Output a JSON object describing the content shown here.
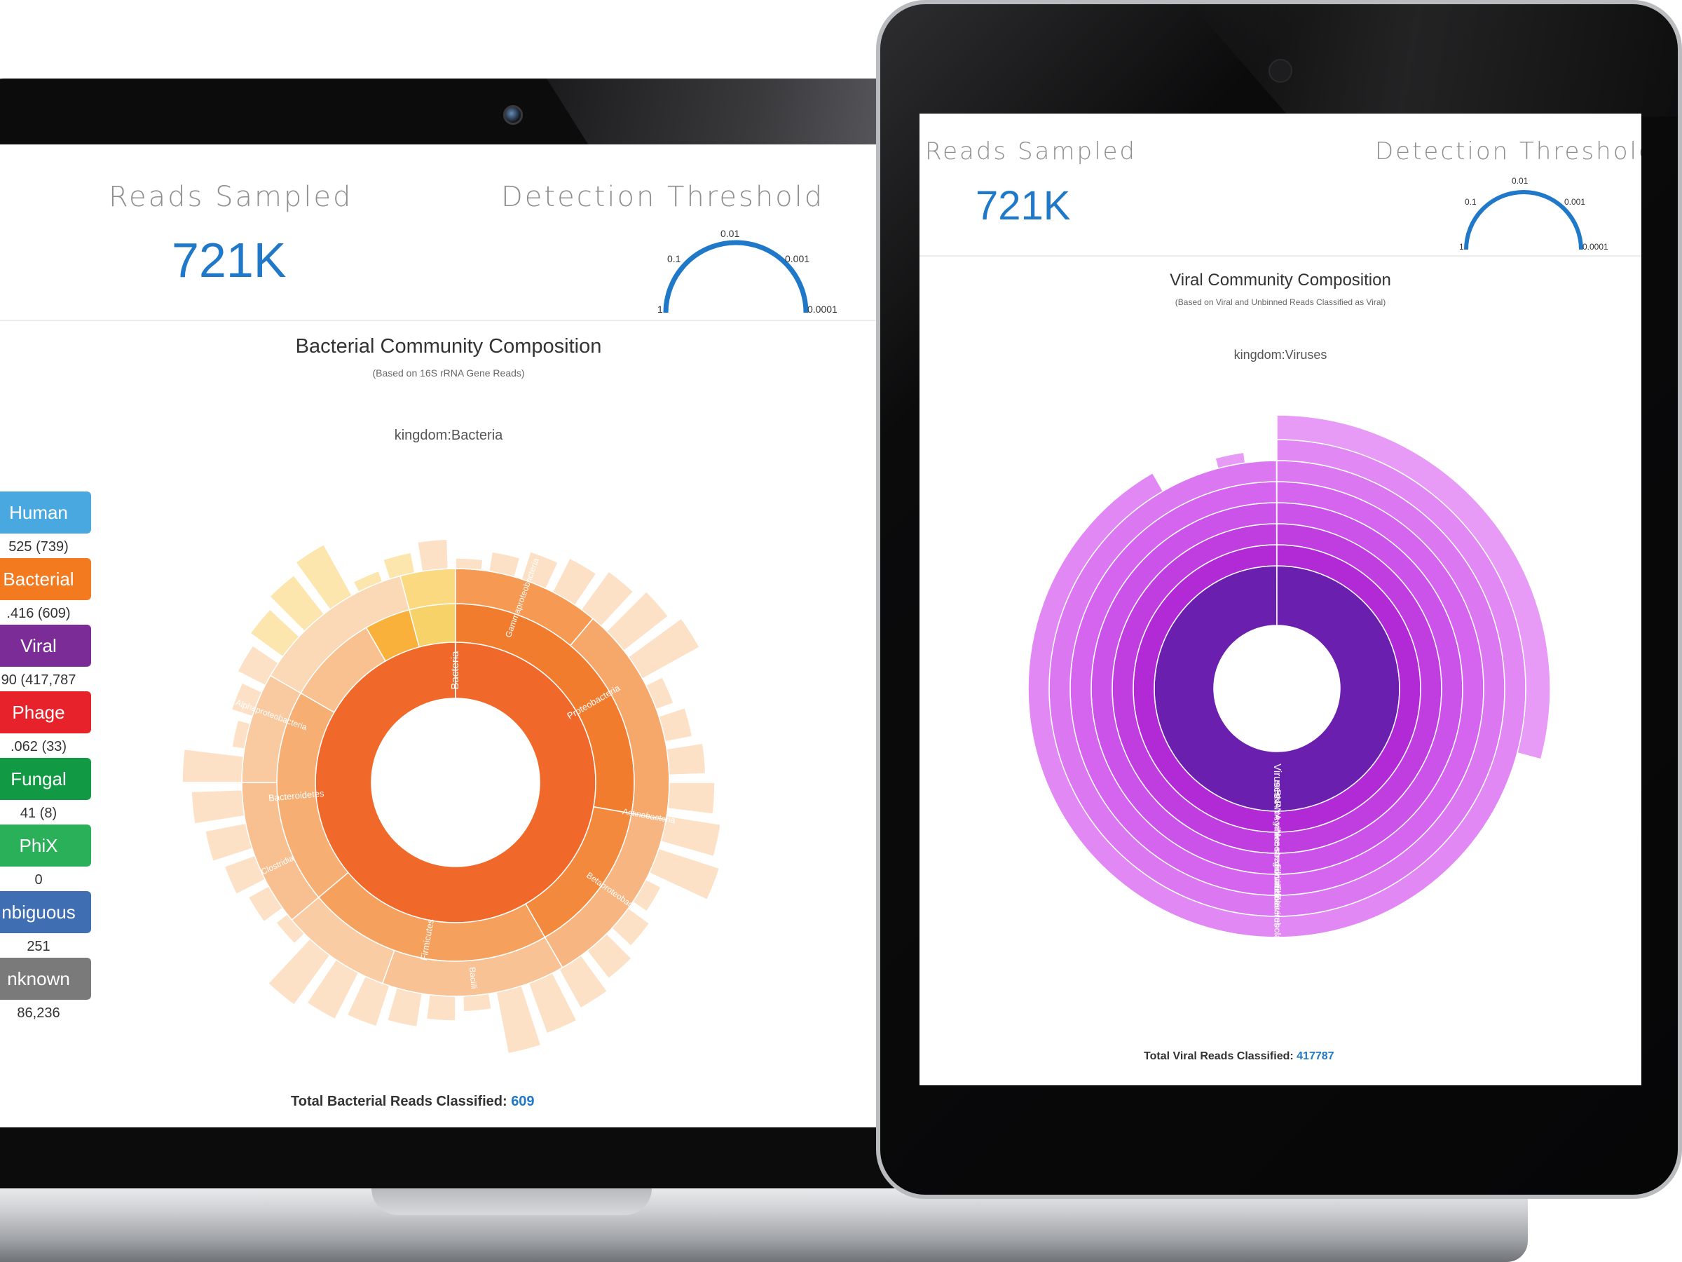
{
  "laptop": {
    "reads_sampled_title": "Reads Sampled",
    "reads_sampled_value": "721K",
    "detection_title": "Detection Threshold",
    "gauge_ticks": [
      "1",
      "0.1",
      "0.01",
      "0.001",
      "0.0001"
    ],
    "chart_title": "Bacterial Community Composition",
    "chart_subtitle": "(Based on 16S rRNA Gene Reads)",
    "breadcrumb": "kingdom:Bacteria",
    "legend": [
      {
        "label": "Human",
        "count": "525 (739)",
        "color": "#4aa8e0"
      },
      {
        "label": "Bacterial",
        "count": ".416 (609)",
        "color": "#f47a20"
      },
      {
        "label": "Viral",
        "count": "90 (417,787",
        "color": "#7b2c96"
      },
      {
        "label": "Phage",
        "count": ".062 (33)",
        "color": "#e8222b"
      },
      {
        "label": "Fungal",
        "count": "41 (8)",
        "color": "#119a43"
      },
      {
        "label": "PhiX",
        "count": "0",
        "color": "#2bb05a"
      },
      {
        "label": "nbiguous",
        "count": "251",
        "color": "#3f6fb2"
      },
      {
        "label": "nknown",
        "count": "86,236",
        "color": "#7a7a7a"
      }
    ],
    "ring_labels": [
      "Bacteria",
      "Proteobacteria",
      "Firmicutes",
      "Bacteroidetes",
      "Actinobacteria",
      "Bacilli",
      "Clostridia",
      "Gammaproteobacteria",
      "Betaproteobacteria",
      "Alphaproteobacteria"
    ],
    "total_label": "Total Bacterial Reads Classified:",
    "total_value": "609"
  },
  "tablet": {
    "reads_sampled_title": "Reads Sampled",
    "reads_sampled_value": "721K",
    "detection_title": "Detection Threshold",
    "gauge_ticks": [
      "1",
      "0.1",
      "0.01",
      "0.001",
      "0.0001"
    ],
    "chart_title": "Viral Community Composition",
    "chart_subtitle": "(Based on Viral and Unbinned Reads Classified as Viral)",
    "breadcrumb": "kingdom:Viruses",
    "ring_labels": [
      "Viruses",
      "ssRNA viruses",
      "ssRNA negative-strand viruses",
      "Mononegavirales",
      "Filoviridae",
      "Ebolavirus",
      "Zaire ebolavirus"
    ],
    "total_label": "Total Viral Reads Classified:",
    "total_value": "417787"
  },
  "colors": {
    "accent_blue": "#1f78c8",
    "bacteria_orange": "#f06a24",
    "virus_purple": "#6b1fae",
    "virus_magenta": "#d65ff0"
  }
}
